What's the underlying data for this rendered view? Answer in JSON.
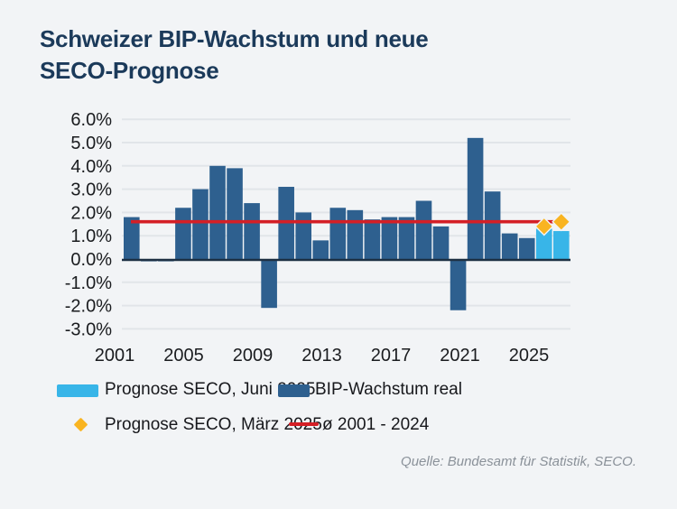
{
  "page": {
    "title_line1": "Schweizer BIP-Wachstum und neue",
    "title_line2": "SECO-Prognose",
    "source": "Quelle: Bundesamt für Statistik, SECO."
  },
  "legend": {
    "forecast_june_label": "Prognose SECO, Juni 2025",
    "real_label": "BIP-Wachstum real",
    "forecast_march_label": "Prognose SECO, März 2025",
    "average_label": "ø 2001 - 2024"
  },
  "colors": {
    "background": "#f2f4f6",
    "title": "#1b3a5a",
    "bar_real": "#2e608f",
    "bar_forecast": "#38b5e8",
    "average_line": "#d41f26",
    "diamond": "#f9b421",
    "gridline": "#e1e5e9",
    "zero_line": "#1d3043",
    "axis_text": "#1a1c1f",
    "source_text": "#8a9199"
  },
  "chart_data": {
    "type": "bar",
    "title": "Schweizer BIP-Wachstum und neue SECO-Prognose",
    "unit": "percent",
    "ylim": [
      -3,
      6
    ],
    "grid": "horizontal",
    "legend_position": "bottom",
    "y_tick_labels": [
      "6.0%",
      "5.0%",
      "4.0%",
      "3.0%",
      "2.0%",
      "1.0%",
      "0.0%",
      "-1.0%",
      "-2.0%",
      "-3.0%"
    ],
    "y_tick_values": [
      6,
      5,
      4,
      3,
      2,
      1,
      0,
      -1,
      -2,
      -3
    ],
    "x_tick_labels": [
      "2001",
      "2005",
      "2009",
      "2013",
      "2017",
      "2021",
      "2025"
    ],
    "series": [
      {
        "name": "BIP-Wachstum real",
        "type": "bar",
        "start_year": 2001,
        "values": [
          1.8,
          -0.1,
          -0.1,
          2.2,
          3.0,
          4.0,
          3.9,
          2.4,
          -2.1,
          3.1,
          2.0,
          0.8,
          2.2,
          2.1,
          1.7,
          1.8,
          1.8,
          2.5,
          1.4,
          -2.2,
          5.2,
          2.9,
          1.1,
          0.9
        ]
      },
      {
        "name": "Prognose SECO, Juni 2025",
        "type": "bar",
        "start_year": 2025,
        "values": [
          1.3,
          1.2
        ]
      },
      {
        "name": "Prognose SECO, März 2025",
        "type": "scatter",
        "marker": "diamond",
        "points": [
          {
            "year": 2025,
            "value": 1.4
          },
          {
            "year": 2026,
            "value": 1.6
          }
        ]
      },
      {
        "name": "ø 2001 - 2024",
        "type": "hline",
        "value": 1.6
      }
    ]
  }
}
